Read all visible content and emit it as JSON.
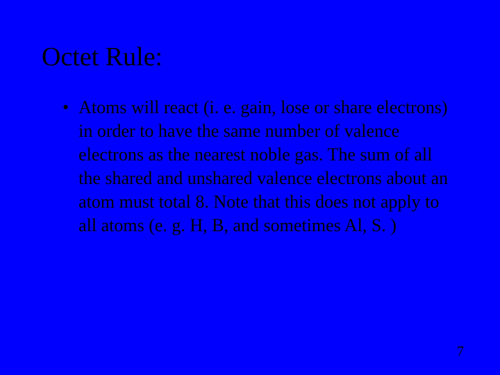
{
  "slide": {
    "background_color": "#0000ff",
    "text_color": "#000000",
    "font_family": "Times New Roman",
    "title": {
      "text": "Octet Rule:",
      "fontsize": 38
    },
    "bullets": [
      {
        "marker": "•",
        "text": "Atoms will react (i. e. gain, lose or share electrons) in order to have the same number of valence electrons as the nearest noble gas. The sum of all the shared and unshared valence electrons about an atom must total 8. Note that this does not apply to all atoms (e. g. H, B, and sometimes Al, S. )"
      }
    ],
    "body_fontsize": 26,
    "body_lineheight": 34,
    "page_number": "7",
    "page_number_fontsize": 20
  }
}
